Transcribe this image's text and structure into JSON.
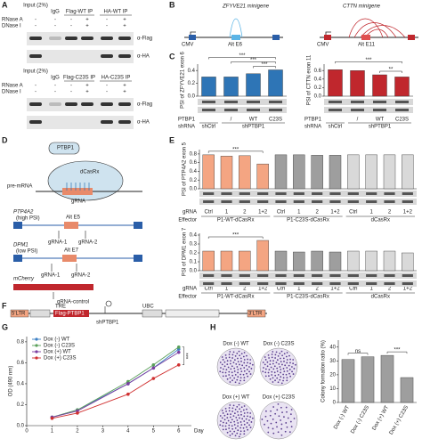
{
  "panel_labels": [
    "A",
    "B",
    "C",
    "D",
    "E",
    "F",
    "G",
    "H"
  ],
  "panel_a": {
    "input": "Input (2%)",
    "igg": "IgG",
    "rnase": "RNase A",
    "dnase": "DNase I",
    "ip_top": [
      "Flag-WT IP",
      "HA-WT IP"
    ],
    "ip_bottom": [
      "Flag-C23S IP",
      "HA-C23S IP"
    ],
    "signs": [
      "-",
      "+"
    ],
    "antibodies": [
      "α-Flag",
      "α-HA"
    ]
  },
  "panel_b": {
    "genes": [
      "ZFYVE21 minigene",
      "CTTN minigene"
    ],
    "promoter": "CMV",
    "exons": [
      "Alt E6",
      "Alt E11"
    ]
  },
  "panel_d": {
    "proteins": [
      "PTBP1",
      "dCasRx"
    ],
    "grna": "gRNA",
    "pre_mrna": "pre-mRNA",
    "genes": [
      {
        "name": "PTP4A2",
        "note": "(high PSI)",
        "exon": "Alt E5"
      },
      {
        "name": "DPM1",
        "note": "(low PSI)",
        "exon": "Alt E7"
      },
      {
        "name": "mCherry"
      }
    ],
    "guides": [
      "gRNA-1",
      "gRNA-2",
      "gRNA-control"
    ]
  },
  "panel_f": {
    "elements": [
      "5'LTR",
      "TRE",
      "Flag-PTBP1",
      "UBC",
      "3'LTR"
    ],
    "hairpin": "shPTBP1"
  },
  "panel_h": {
    "dishes": [
      "Dox (-) WT",
      "Dox (-) C23S",
      "Dox (+) WT",
      "Dox (+) C23S"
    ]
  },
  "chart_data": [
    {
      "type": "bar",
      "y_label": "PSI of ZFYVE21 exon 6",
      "categories": [
        null,
        "/",
        "WT",
        "C23S"
      ],
      "values": [
        0.3,
        0.3,
        0.35,
        0.41
      ],
      "color": "#2e75b6",
      "ylim": [
        0,
        0.5
      ],
      "yticks": [
        {
          "value": 0,
          "label": "0.0"
        },
        0.2,
        0.4
      ],
      "row_labels": [
        "PTBP1",
        "shRNA"
      ],
      "groups": [
        "shCtrl",
        "shPTBP1"
      ],
      "annotations": [
        "***",
        "***",
        "***"
      ]
    },
    {
      "type": "bar",
      "y_label": "PSI of CTTN exon 11",
      "categories": [
        null,
        "/",
        "WT",
        "C23S"
      ],
      "values": [
        0.62,
        0.6,
        0.5,
        0.45
      ],
      "color": "#c0272d",
      "ylim": [
        0,
        0.75
      ],
      "yticks": [
        {
          "value": 0,
          "label": "0.0"
        },
        0.2,
        0.4,
        0.6
      ],
      "row_labels": [
        "PTBP1",
        "shRNA"
      ],
      "groups": [
        "shCtrl",
        "shPTBP1"
      ],
      "annotations": [
        "***",
        "**"
      ]
    },
    {
      "type": "bar",
      "y_label": "PSI of PTP4A2 exon 5",
      "categories": [
        "Ctrl",
        "1",
        "2",
        "1+2",
        "Ctrl",
        "1",
        "2",
        "1+2",
        "Ctrl",
        "1",
        "2",
        "1+2"
      ],
      "values": [
        0.78,
        0.75,
        0.76,
        0.57,
        0.78,
        0.78,
        0.77,
        0.77,
        0.78,
        0.78,
        0.78,
        0.78
      ],
      "colors": [
        "#f4a582",
        "#f4a582",
        "#f4a582",
        "#f4a582",
        "#9e9e9e",
        "#9e9e9e",
        "#9e9e9e",
        "#9e9e9e",
        "#d9d9d9",
        "#d9d9d9",
        "#d9d9d9",
        "#d9d9d9"
      ],
      "ylim": [
        0,
        0.9
      ],
      "yticks": [
        {
          "value": 0,
          "label": "0.0"
        },
        0.2,
        0.4,
        0.6,
        0.8
      ],
      "row_labels": [
        "gRNA",
        "Effector"
      ],
      "groups": [
        "P1-WT-dCasRx",
        "P1-C23S-dCasRx",
        "dCasRx"
      ],
      "annotations": [
        "***"
      ]
    },
    {
      "type": "bar",
      "y_label": "PSI of DPM1 exon 7",
      "categories": [
        "Ctrl",
        "1",
        "2",
        "1+2",
        "Ctrl",
        "1",
        "2",
        "1+2",
        "Ctrl",
        "1",
        "2",
        "1+2"
      ],
      "values": [
        0.22,
        0.22,
        0.22,
        0.34,
        0.22,
        0.21,
        0.22,
        0.21,
        0.22,
        0.22,
        0.22,
        0.2
      ],
      "colors": [
        "#f4a582",
        "#f4a582",
        "#f4a582",
        "#f4a582",
        "#9e9e9e",
        "#9e9e9e",
        "#9e9e9e",
        "#9e9e9e",
        "#d9d9d9",
        "#d9d9d9",
        "#d9d9d9",
        "#d9d9d9"
      ],
      "ylim": [
        0,
        0.42
      ],
      "yticks": [
        {
          "value": 0,
          "label": "0.0"
        },
        0.1,
        0.2,
        0.3,
        0.4
      ],
      "row_labels": [
        "gRNA",
        "Effector"
      ],
      "groups": [
        "P1-WT-dCasRx",
        "P1-C23S-dCasRx",
        "dCasRx"
      ],
      "annotations": [
        "***"
      ]
    },
    {
      "type": "line",
      "y_label": "OD (490 nm)",
      "x_label": "Day",
      "x": [
        1,
        2,
        4,
        5,
        6
      ],
      "series": [
        {
          "name": "Dox (-) WT",
          "color": "#3b7fc4",
          "values": [
            0.08,
            0.15,
            0.4,
            0.55,
            0.73
          ]
        },
        {
          "name": "Dox (-) C23S",
          "color": "#5aa05a",
          "values": [
            0.08,
            0.15,
            0.42,
            0.58,
            0.75
          ]
        },
        {
          "name": "Dox (+) WT",
          "color": "#7b3fa0",
          "values": [
            0.08,
            0.14,
            0.4,
            0.55,
            0.7
          ]
        },
        {
          "name": "Dox (+) C23S",
          "color": "#d03030",
          "values": [
            0.07,
            0.12,
            0.3,
            0.45,
            0.58
          ]
        }
      ],
      "xlim": [
        0,
        6.5
      ],
      "xticks": [
        0,
        1,
        2,
        3,
        4,
        5,
        6
      ],
      "ylim": [
        0,
        0.85
      ],
      "yticks": [
        {
          "value": 0,
          "label": "0.0"
        },
        0.2,
        0.4,
        0.6,
        0.8
      ],
      "legend": "upper-left",
      "annotations": [
        "***"
      ]
    },
    {
      "type": "bar",
      "y_label": "Colony formation ratio (%)",
      "categories": [
        "Dox (-) WT",
        "Dox (-) C23S",
        "Dox (+) WT",
        "Dox (+) C23S"
      ],
      "values": [
        31,
        33,
        34,
        18
      ],
      "color": "#9e9e9e",
      "ylim": [
        0,
        45
      ],
      "yticks": [
        0,
        10,
        20,
        30,
        40
      ],
      "annotations": [
        "ns",
        "***"
      ]
    }
  ]
}
